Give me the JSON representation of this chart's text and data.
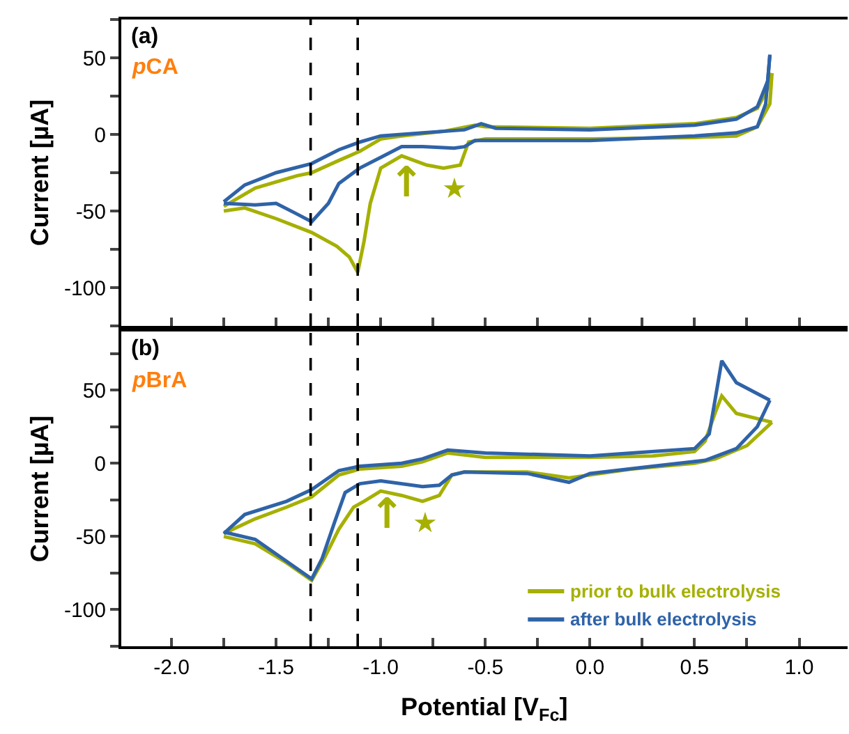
{
  "chart_data": [
    {
      "type": "line",
      "ylabel": "Current [µA]",
      "tick_labels": "y",
      "xlim": [
        -2.24,
        1.23
      ],
      "ylim": [
        -125,
        75
      ],
      "xticks": [
        {
          "value": -2.0,
          "label": null
        },
        {
          "value": -1.75,
          "label": null
        },
        {
          "value": -1.5,
          "label": null
        },
        {
          "value": -1.25,
          "label": null
        },
        {
          "value": -1.0,
          "label": null
        },
        {
          "value": -0.75,
          "label": null
        },
        {
          "value": -0.5,
          "label": null
        },
        {
          "value": -0.25,
          "label": null
        },
        {
          "value": 0.0,
          "label": null
        },
        {
          "value": 0.25,
          "label": null
        },
        {
          "value": 0.5,
          "label": null
        },
        {
          "value": 0.75,
          "label": null
        },
        {
          "value": 1.0,
          "label": null
        }
      ],
      "yticks": [
        {
          "value": -125,
          "label": null
        },
        -100,
        {
          "value": -75,
          "label": null
        },
        -50,
        {
          "value": -25,
          "label": null
        },
        0,
        {
          "value": 25,
          "label": null
        },
        50,
        {
          "value": 75,
          "label": null
        }
      ],
      "ref_lines": [
        {
          "axis": "x",
          "value": -1.335,
          "line_style": "dashed",
          "color": "#000000"
        },
        {
          "axis": "x",
          "value": -1.11,
          "line_style": "dashed",
          "color": "#000000"
        }
      ],
      "annotations": [
        "(a)",
        "pCA",
        "★",
        "↑"
      ],
      "series": [
        {
          "color": "#a5b000",
          "x": [
            0.87,
            0.86,
            0.8,
            0.7,
            0.5,
            0.0,
            -0.5,
            -0.58,
            -0.62,
            -0.7,
            -0.78,
            -0.9,
            -1.0,
            -1.05,
            -1.08,
            -1.11,
            -1.15,
            -1.21,
            -1.33,
            -1.5,
            -1.65,
            -1.75
          ],
          "values": [
            40,
            20,
            5,
            -1,
            -2,
            -3,
            -3,
            -5,
            -20,
            -22,
            -20,
            -14,
            -22,
            -45,
            -70,
            -90,
            -80,
            -73,
            -64,
            -55,
            -48,
            -50
          ]
        },
        {
          "color": "#a5b000",
          "x": [
            -1.75,
            -1.6,
            -1.4,
            -1.33,
            -1.2,
            -1.1,
            -1.0,
            -0.9,
            -0.7,
            -0.55,
            -0.5,
            0.0,
            0.5,
            0.7,
            0.8,
            0.85,
            0.87
          ],
          "values": [
            -47,
            -35,
            -27,
            -25,
            -17,
            -11,
            -3,
            -1,
            2,
            6,
            5,
            4,
            7,
            11,
            17,
            30,
            40
          ]
        },
        {
          "color": "#2f63a8",
          "x": [
            0.86,
            0.84,
            0.8,
            0.7,
            0.5,
            0.0,
            -0.5,
            -0.55,
            -0.6,
            -0.65,
            -0.8,
            -0.9,
            -1.0,
            -1.1,
            -1.2,
            -1.25,
            -1.33,
            -1.4,
            -1.5,
            -1.6,
            -1.75
          ],
          "values": [
            52,
            20,
            5,
            1,
            -1,
            -4,
            -4,
            -4,
            -8,
            -9,
            -8,
            -8,
            -15,
            -22,
            -32,
            -45,
            -57,
            -52,
            -45,
            -46,
            -45
          ]
        },
        {
          "color": "#2f63a8",
          "x": [
            -1.75,
            -1.65,
            -1.5,
            -1.33,
            -1.2,
            -1.1,
            -1.0,
            -0.8,
            -0.6,
            -0.52,
            -0.45,
            0.0,
            0.5,
            0.7,
            0.8,
            0.85,
            0.86
          ],
          "values": [
            -44,
            -33,
            -25,
            -19,
            -10,
            -5,
            -1,
            1,
            3,
            7,
            4,
            3,
            6,
            10,
            18,
            35,
            52
          ]
        }
      ]
    },
    {
      "type": "line",
      "xlabel": "Potential [V$_{Fc}$]",
      "ylabel": "Current [µA]",
      "legend": "bottom right",
      "xlim": [
        -2.24,
        1.23
      ],
      "ylim": [
        -125,
        90
      ],
      "xticks": [
        {
          "value": -2,
          "label": "-2.0"
        },
        {
          "value": -1.75,
          "label": null
        },
        -1.5,
        {
          "value": -1.25,
          "label": null
        },
        {
          "value": -1,
          "label": "-1.0"
        },
        {
          "value": -0.75,
          "label": null
        },
        -0.5,
        {
          "value": -0.25,
          "label": null
        },
        {
          "value": 0,
          "label": "0.0"
        },
        {
          "value": 0.25,
          "label": null
        },
        0.5,
        {
          "value": 0.75,
          "label": null
        },
        {
          "value": 1,
          "label": "1.0"
        }
      ],
      "yticks": [
        {
          "value": -125,
          "label": null
        },
        -100,
        {
          "value": -75,
          "label": null
        },
        -50,
        {
          "value": -25,
          "label": null
        },
        0,
        {
          "value": 25,
          "label": null
        },
        50,
        {
          "value": 75,
          "label": null
        }
      ],
      "ref_lines": [
        {
          "axis": "x",
          "value": -1.335,
          "line_style": "dashed",
          "color": "#000000"
        },
        {
          "axis": "x",
          "value": -1.11,
          "line_style": "dashed",
          "color": "#000000"
        }
      ],
      "annotations": [
        "(b)",
        "pBrA",
        "★",
        "↑"
      ],
      "series": [
        {
          "name": "prior to bulk electrolysis",
          "color": "#a5b000",
          "x": [
            0.87,
            0.75,
            0.6,
            0.5,
            0.2,
            -0.1,
            -0.3,
            -0.6,
            -0.66,
            -0.72,
            -0.8,
            -0.9,
            -1.0,
            -1.08,
            -1.13,
            -1.2,
            -1.27,
            -1.33,
            -1.45,
            -1.6,
            -1.75
          ],
          "values": [
            28,
            12,
            3,
            0,
            -4,
            -10,
            -6,
            -6,
            -8,
            -22,
            -26,
            -22,
            -19,
            -26,
            -30,
            -45,
            -65,
            -80,
            -68,
            -55,
            -50
          ]
        },
        {
          "color": "#a5b000",
          "x": [
            -1.75,
            -1.6,
            -1.45,
            -1.33,
            -1.2,
            -1.1,
            -0.9,
            -0.8,
            -0.68,
            -0.5,
            0.0,
            0.3,
            0.5,
            0.55,
            0.6,
            0.63,
            0.7,
            0.87
          ],
          "values": [
            -48,
            -38,
            -30,
            -23,
            -8,
            -4,
            -2,
            1,
            7,
            4,
            4,
            5,
            8,
            15,
            35,
            46,
            34,
            28
          ]
        },
        {
          "name": "after bulk electrolysis",
          "color": "#2f63a8",
          "x": [
            0.86,
            0.8,
            0.7,
            0.55,
            0.3,
            0.0,
            -0.1,
            -0.3,
            -0.6,
            -0.66,
            -0.72,
            -0.8,
            -1.0,
            -1.1,
            -1.17,
            -1.22,
            -1.28,
            -1.33,
            -1.45,
            -1.6,
            -1.75
          ],
          "values": [
            43,
            25,
            10,
            2,
            -2,
            -7,
            -13,
            -7,
            -6,
            -8,
            -15,
            -16,
            -12,
            -14,
            -20,
            -40,
            -65,
            -79,
            -67,
            -52,
            -47
          ]
        },
        {
          "color": "#2f63a8",
          "x": [
            -1.75,
            -1.65,
            -1.45,
            -1.33,
            -1.2,
            -1.1,
            -0.9,
            -0.8,
            -0.68,
            -0.5,
            0.0,
            0.2,
            0.5,
            0.57,
            0.6,
            0.63,
            0.7,
            0.86
          ],
          "values": [
            -48,
            -35,
            -26,
            -18,
            -5,
            -2,
            0,
            3,
            9,
            7,
            5,
            7,
            10,
            20,
            45,
            70,
            55,
            43
          ]
        }
      ]
    }
  ]
}
